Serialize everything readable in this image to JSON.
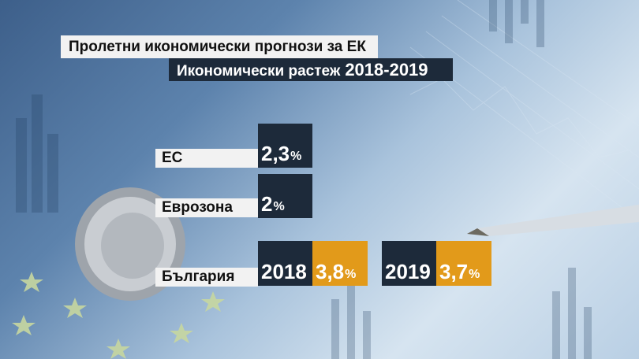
{
  "title": "Пролетни икономически прогнози за ЕК",
  "subtitle": "Икономически растеж",
  "subtitle_years": "2018-2019",
  "colors": {
    "dark": "#1d2a3a",
    "gold": "#e29a1a",
    "light": "#f2f2f2"
  },
  "chart_data": {
    "type": "table",
    "title": "Пролетни икономически прогнози за ЕК",
    "subtitle": "Икономически растеж 2018-2019",
    "rows": [
      {
        "label": "ЕС",
        "value": "2,3",
        "unit": "%"
      },
      {
        "label": "Еврозона",
        "value": "2",
        "unit": "%"
      },
      {
        "label": "България",
        "values": [
          {
            "year": "2018",
            "value": "3,8",
            "unit": "%"
          },
          {
            "year": "2019",
            "value": "3,7",
            "unit": "%"
          }
        ]
      }
    ]
  }
}
